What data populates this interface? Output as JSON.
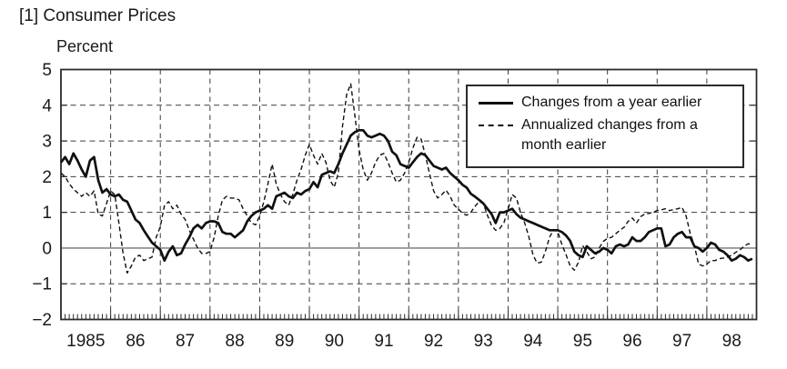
{
  "page": {
    "title": "[1] Consumer Prices",
    "y_axis_unit": "Percent"
  },
  "legend": {
    "series1_label": "Changes from a year earlier",
    "series2_label": "Annualized changes from a month earlier"
  },
  "colors": {
    "line": "#101010",
    "grid": "#3c3c3c",
    "zero_line": "#8a8a8a",
    "frame": "#2b2b2b",
    "background": "#ffffff"
  },
  "chart_data": {
    "type": "line",
    "title": "[1] Consumer Prices",
    "xlabel": "",
    "ylabel": "Percent",
    "ylim": [
      -2,
      5
    ],
    "xlim": [
      1985,
      1999
    ],
    "grid": true,
    "legend_position": "inside-upper-right",
    "y_tick_values": [
      5,
      4,
      3,
      2,
      1,
      0,
      -1,
      -2
    ],
    "y_tick_labels": [
      "5",
      "4",
      "3",
      "2",
      "1",
      "0",
      "−1",
      "−2"
    ],
    "x_tick_labels": [
      "1985",
      "86",
      "87",
      "88",
      "89",
      "90",
      "91",
      "92",
      "93",
      "94",
      "95",
      "96",
      "97",
      "98"
    ],
    "x_start_year": 1985,
    "x_step_months": 1,
    "series": [
      {
        "name": "Changes from a year earlier",
        "style": "solid",
        "values": [
          2.4,
          2.55,
          2.35,
          2.65,
          2.45,
          2.2,
          2.0,
          2.45,
          2.55,
          1.9,
          1.55,
          1.65,
          1.5,
          1.45,
          1.5,
          1.35,
          1.3,
          1.05,
          0.8,
          0.7,
          0.5,
          0.32,
          0.15,
          0.05,
          -0.05,
          -0.35,
          -0.1,
          0.05,
          -0.2,
          -0.15,
          0.1,
          0.3,
          0.55,
          0.65,
          0.55,
          0.7,
          0.75,
          0.75,
          0.7,
          0.45,
          0.4,
          0.4,
          0.3,
          0.4,
          0.5,
          0.75,
          0.9,
          1.0,
          1.05,
          1.1,
          1.2,
          1.1,
          1.45,
          1.5,
          1.55,
          1.45,
          1.4,
          1.55,
          1.5,
          1.6,
          1.65,
          1.85,
          1.7,
          2.05,
          2.1,
          2.15,
          2.1,
          2.35,
          2.65,
          2.9,
          3.15,
          3.25,
          3.3,
          3.3,
          3.15,
          3.1,
          3.15,
          3.2,
          3.15,
          3.0,
          2.7,
          2.6,
          2.35,
          2.3,
          2.25,
          2.4,
          2.55,
          2.65,
          2.6,
          2.45,
          2.3,
          2.25,
          2.2,
          2.25,
          2.1,
          2.0,
          1.9,
          1.77,
          1.69,
          1.52,
          1.44,
          1.35,
          1.25,
          1.1,
          0.95,
          0.7,
          1.0,
          1.0,
          1.05,
          1.1,
          0.95,
          0.85,
          0.8,
          0.75,
          0.7,
          0.65,
          0.6,
          0.55,
          0.5,
          0.5,
          0.5,
          0.45,
          0.35,
          0.2,
          -0.1,
          -0.2,
          -0.25,
          0.05,
          -0.05,
          -0.15,
          -0.1,
          0.0,
          -0.05,
          -0.15,
          0.05,
          0.1,
          0.05,
          0.1,
          0.3,
          0.2,
          0.2,
          0.3,
          0.45,
          0.5,
          0.55,
          0.55,
          0.05,
          0.1,
          0.3,
          0.4,
          0.45,
          0.3,
          0.3,
          0.05,
          0.0,
          -0.1,
          0.0,
          0.15,
          0.1,
          -0.05,
          -0.1,
          -0.2,
          -0.35,
          -0.3,
          -0.2,
          -0.25,
          -0.35,
          -0.3
        ]
      },
      {
        "name": "Annualized changes from a month earlier",
        "style": "dashed",
        "values": [
          2.1,
          2.0,
          1.8,
          1.65,
          1.55,
          1.45,
          1.55,
          1.45,
          1.6,
          0.95,
          0.9,
          1.25,
          1.6,
          1.5,
          0.7,
          -0.15,
          -0.7,
          -0.5,
          -0.25,
          -0.2,
          -0.35,
          -0.3,
          -0.25,
          0.3,
          0.6,
          1.2,
          1.3,
          1.1,
          1.2,
          0.95,
          0.8,
          0.5,
          0.25,
          0.0,
          -0.15,
          -0.15,
          -0.1,
          0.3,
          0.9,
          1.35,
          1.45,
          1.4,
          1.4,
          1.35,
          1.1,
          0.9,
          0.7,
          0.65,
          0.9,
          1.3,
          1.8,
          2.35,
          1.8,
          1.5,
          1.3,
          1.2,
          1.5,
          1.9,
          2.2,
          2.6,
          2.9,
          2.6,
          2.35,
          2.65,
          2.4,
          1.9,
          1.7,
          2.1,
          3.4,
          4.3,
          4.6,
          3.7,
          2.76,
          2.2,
          1.9,
          2.1,
          2.4,
          2.6,
          2.65,
          2.4,
          2.1,
          1.85,
          1.9,
          2.1,
          2.4,
          2.8,
          3.1,
          3.05,
          2.6,
          2.1,
          1.6,
          1.4,
          1.5,
          1.62,
          1.45,
          1.2,
          1.09,
          0.97,
          0.92,
          1.0,
          1.17,
          1.3,
          1.25,
          0.92,
          0.63,
          0.5,
          0.55,
          0.71,
          1.1,
          1.5,
          1.4,
          1.0,
          0.7,
          0.32,
          -0.19,
          -0.42,
          -0.4,
          -0.1,
          0.3,
          0.52,
          0.45,
          0.1,
          -0.19,
          -0.5,
          -0.62,
          -0.4,
          0.07,
          -0.1,
          -0.3,
          -0.25,
          0.0,
          0.19,
          0.27,
          0.3,
          0.4,
          0.5,
          0.58,
          0.75,
          0.84,
          0.7,
          0.88,
          0.95,
          0.97,
          1.0,
          1.05,
          1.07,
          1.1,
          1.05,
          1.08,
          1.1,
          1.14,
          0.9,
          0.4,
          0.07,
          -0.45,
          -0.5,
          -0.45,
          -0.35,
          -0.35,
          -0.3,
          -0.28,
          -0.25,
          -0.2,
          -0.12,
          -0.05,
          0.05,
          0.12,
          0.1
        ]
      }
    ]
  }
}
